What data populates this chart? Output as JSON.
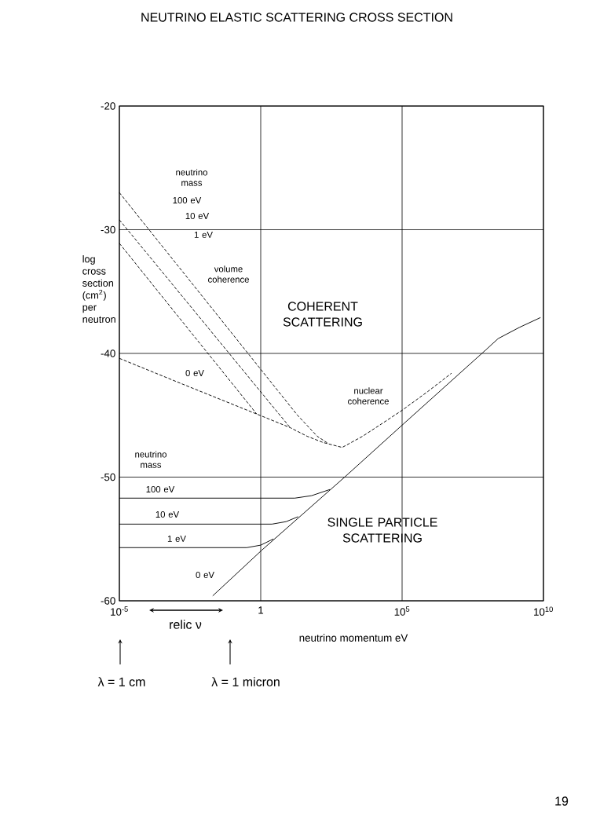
{
  "chart_data": {
    "type": "line",
    "title": "NEUTRINO ELASTIC SCATTERING CROSS SECTION",
    "xlabel": "neutrino momentum eV",
    "ylabel": "log cross section (cm$^{2}$) per neutron",
    "log": "x",
    "grid": true,
    "marker": "none",
    "xlim": [
      1e-05,
      10000000000.0
    ],
    "ylim": [
      -60,
      -20
    ],
    "xticks": [
      {
        "value": 1e-05,
        "label": "10$^{-5}$"
      },
      {
        "value": 1,
        "label": "1"
      },
      {
        "value": 100000.0,
        "label": "10$^{5}$"
      },
      {
        "value": 10000000000.0,
        "label": "10$^{10}$"
      }
    ],
    "yticks": [
      -20,
      -30,
      -40,
      -50,
      -60
    ],
    "series": [
      {
        "color": "#000000",
        "line_style": "dashed",
        "x": [
          1e-05,
          0.0023,
          0.72,
          11,
          44,
          160,
          760,
          4000,
          16000.0,
          100000.0,
          790000.0,
          5600000.0
        ],
        "values": [
          -40.4,
          -42.6,
          -44.9,
          -46.0,
          -46.7,
          -47.2,
          -47.6,
          -46.7,
          -45.8,
          -44.6,
          -43.1,
          -41.6
        ]
      },
      {
        "color": "#000000",
        "line_style": "dashed",
        "x": [
          1e-05,
          0.72
        ],
        "values": [
          -31.1,
          -44.9
        ]
      },
      {
        "color": "#000000",
        "line_style": "dashed",
        "x": [
          1e-05,
          11
        ],
        "values": [
          -29.2,
          -46.0
        ]
      },
      {
        "color": "#000000",
        "line_style": "dashed",
        "x": [
          1e-05,
          20,
          100,
          250
        ],
        "values": [
          -27.0,
          -45.0,
          -46.7,
          -47.3
        ]
      },
      {
        "color": "#000000",
        "line_style": "solid",
        "x": [
          0.02,
          1.1,
          930,
          100000.0,
          93000000.0,
          250000000.0,
          1400000000.0,
          7900000000.0
        ],
        "values": [
          -59.6,
          -55.9,
          -50.0,
          -45.8,
          -39.7,
          -38.8,
          -37.9,
          -37.1
        ]
      },
      {
        "color": "#000000",
        "line_style": "solid",
        "x": [
          1e-05,
          0.32,
          1,
          2.8
        ],
        "values": [
          -55.7,
          -55.7,
          -55.5,
          -55.0
        ]
      },
      {
        "color": "#000000",
        "line_style": "solid",
        "x": [
          1e-05,
          2.5,
          7.9,
          21
        ],
        "values": [
          -53.8,
          -53.8,
          -53.6,
          -53.2
        ]
      },
      {
        "color": "#000000",
        "line_style": "solid",
        "x": [
          1e-05,
          16,
          63,
          280
        ],
        "values": [
          -51.7,
          -51.7,
          -51.5,
          -51.0
        ]
      }
    ],
    "annotations": [
      "neutrino mass",
      "100 eV",
      "10 eV",
      "1 eV",
      "volume coherence",
      "COHERENT SCATTERING",
      "0 eV",
      "nuclear coherence",
      "neutrino mass",
      "100 eV",
      "10 eV",
      "1 eV",
      "0 eV",
      "SINGLE PARTICLE SCATTERING",
      "relic ν",
      "λ = 1 cm",
      "λ = 1 micron",
      "19"
    ]
  }
}
